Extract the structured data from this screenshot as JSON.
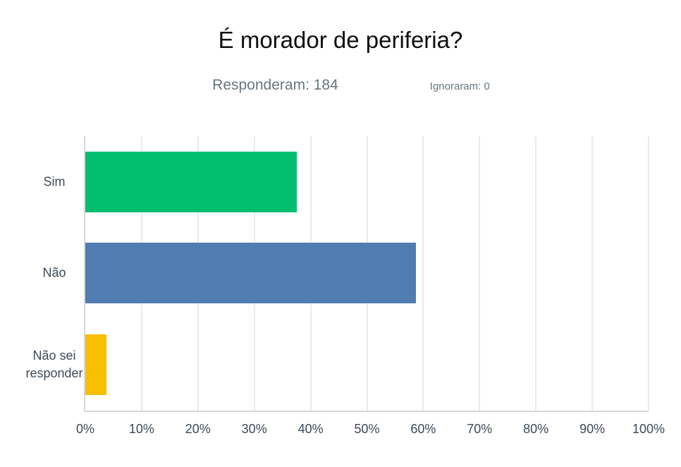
{
  "colors": {
    "title_text": "#0f0f0f",
    "subtitle_text": "#68777d",
    "axis_label_text": "#3d4a57",
    "gridline": "#ebebeb",
    "axis_line": "#d8d8d8",
    "background": "#ffffff"
  },
  "chart_data": {
    "type": "bar",
    "orientation": "horizontal",
    "title": "É morador de periferia?",
    "responded_text": "Responderam: 184",
    "ignored_text": "Ignoraram: 0",
    "responded": 184,
    "ignored": 0,
    "categories": [
      "Sim",
      "Não",
      "Não sei responder"
    ],
    "values": [
      37.5,
      58.7,
      3.8
    ],
    "value_unit": "%",
    "series_colors": [
      "#02be6f",
      "#507cb1",
      "#f7be02"
    ],
    "xlim": [
      0,
      100
    ],
    "x_ticks": [
      "0%",
      "10%",
      "20%",
      "30%",
      "40%",
      "50%",
      "60%",
      "70%",
      "80%",
      "90%",
      "100%"
    ],
    "grid": "vertical-only",
    "legend": false,
    "data_labels": false
  }
}
